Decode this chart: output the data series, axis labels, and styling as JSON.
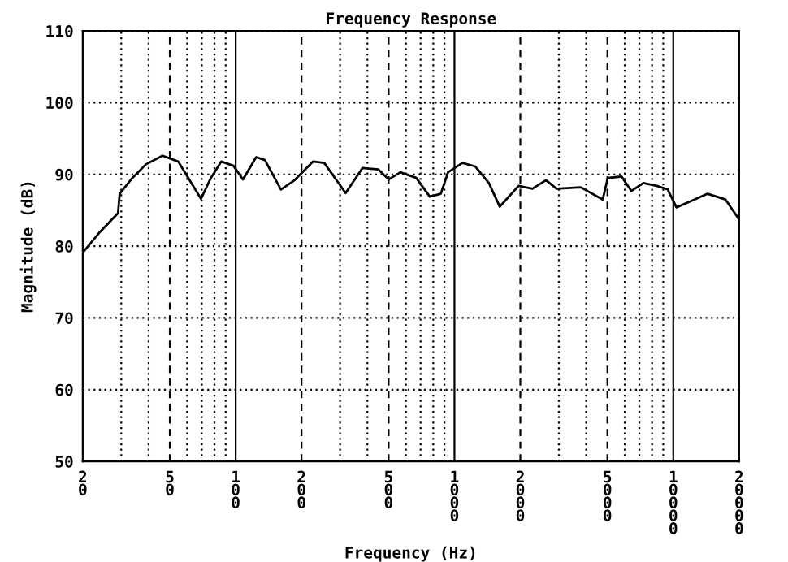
{
  "chart_data": {
    "type": "line",
    "title": "Frequency Response",
    "xlabel": "Frequency (Hz)",
    "ylabel": "Magnitude (dB)",
    "log": "x",
    "xlim": [
      20,
      20000
    ],
    "ylim": [
      50,
      110
    ],
    "xticks": [
      20,
      50,
      100,
      200,
      500,
      1000,
      2000,
      5000,
      10000,
      20000
    ],
    "yticks": [
      50,
      60,
      70,
      80,
      90,
      100,
      110
    ],
    "grid": true,
    "marker": "none",
    "line_style": "solid",
    "series": [
      {
        "color": "#000000",
        "x": [
          20,
          24,
          29,
          29.5,
          33.7,
          38.9,
          46.3,
          54.6,
          69.4,
          77,
          86,
          97.7,
          108,
          124,
          136,
          161,
          186,
          226,
          254,
          318,
          380,
          448,
          501,
          566,
          669,
          771,
          866,
          935,
          1087,
          1245,
          1437,
          1610,
          1965,
          2270,
          2620,
          2930,
          3780,
          4760,
          5020,
          5800,
          6430,
          7300,
          8400,
          9430,
          10340,
          11900,
          14340,
          17330,
          20000
        ],
        "values": [
          79.1,
          82.0,
          84.6,
          87.3,
          89.5,
          91.4,
          92.6,
          91.8,
          86.6,
          89.5,
          91.8,
          91.2,
          89.3,
          92.4,
          92.0,
          87.9,
          89.2,
          91.8,
          91.6,
          87.4,
          90.9,
          90.7,
          89.3,
          90.3,
          89.5,
          86.9,
          87.3,
          90.3,
          91.6,
          91.1,
          88.8,
          85.5,
          88.4,
          88.0,
          89.2,
          88.0,
          88.2,
          86.5,
          89.5,
          89.7,
          87.7,
          88.8,
          88.4,
          87.9,
          85.4,
          86.2,
          87.3,
          86.5,
          83.7
        ]
      }
    ]
  }
}
